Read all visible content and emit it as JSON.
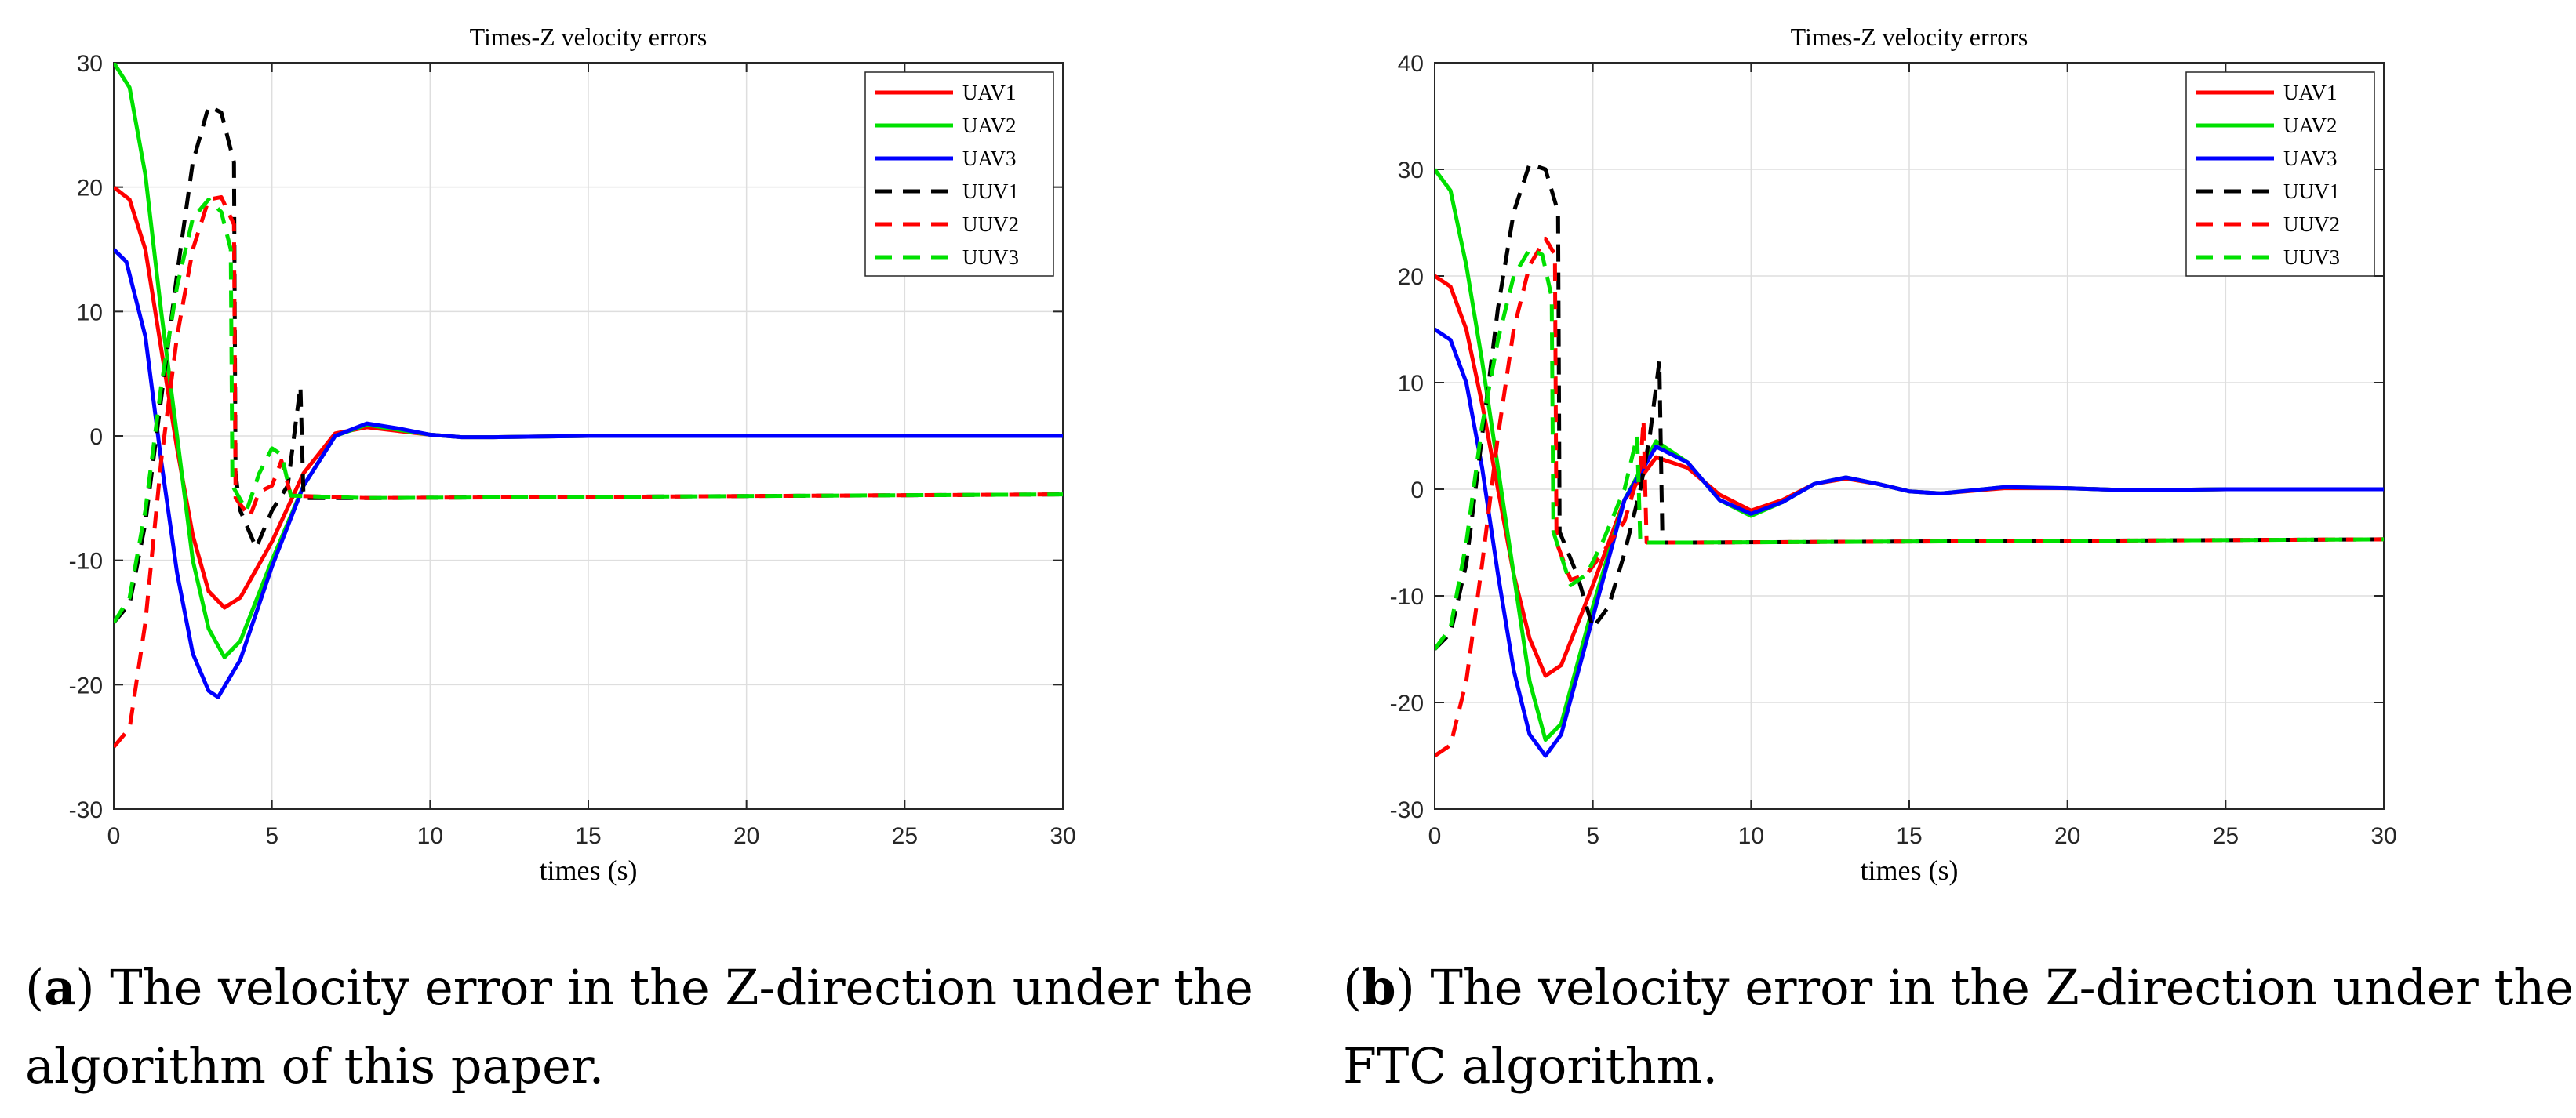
{
  "chart_data": [
    {
      "type": "line",
      "title": "Times-Z velocity errors",
      "xlabel": "times (s)",
      "ylabel": "",
      "xlim": [
        0,
        30
      ],
      "ylim": [
        -30,
        30
      ],
      "xticks": [
        0,
        5,
        10,
        15,
        20,
        25,
        30
      ],
      "yticks": [
        -30,
        -20,
        -10,
        0,
        10,
        20,
        30
      ],
      "legend_position": "top-right",
      "grid": true,
      "series": [
        {
          "name": "UAV1",
          "color": "#ff0000",
          "dash": "solid",
          "points": [
            [
              0,
              20
            ],
            [
              0.5,
              19
            ],
            [
              1,
              15
            ],
            [
              1.5,
              7
            ],
            [
              2,
              -1
            ],
            [
              2.5,
              -8
            ],
            [
              3,
              -12.5
            ],
            [
              3.5,
              -13.8
            ],
            [
              4,
              -13
            ],
            [
              5,
              -8.5
            ],
            [
              6,
              -3
            ],
            [
              7,
              0.2
            ],
            [
              8,
              0.7
            ],
            [
              9,
              0.4
            ],
            [
              10,
              0.1
            ],
            [
              11,
              -0.1
            ],
            [
              12,
              -0.1
            ],
            [
              15,
              0
            ],
            [
              20,
              0
            ],
            [
              30,
              0
            ]
          ]
        },
        {
          "name": "UAV2",
          "color": "#00e000",
          "dash": "solid",
          "points": [
            [
              0,
              30
            ],
            [
              0.5,
              28
            ],
            [
              1,
              21
            ],
            [
              1.5,
              10
            ],
            [
              2,
              0
            ],
            [
              2.5,
              -10
            ],
            [
              3,
              -15.5
            ],
            [
              3.5,
              -17.8
            ],
            [
              4,
              -16.5
            ],
            [
              5,
              -10
            ],
            [
              6,
              -4
            ],
            [
              7,
              0
            ],
            [
              8,
              0.9
            ],
            [
              9,
              0.5
            ],
            [
              10,
              0.1
            ],
            [
              11,
              -0.1
            ],
            [
              12,
              -0.1
            ],
            [
              15,
              0
            ],
            [
              20,
              0
            ],
            [
              30,
              0
            ]
          ]
        },
        {
          "name": "UAV3",
          "color": "#0000ff",
          "dash": "solid",
          "points": [
            [
              0,
              15
            ],
            [
              0.4,
              14
            ],
            [
              1,
              8
            ],
            [
              1.5,
              -2
            ],
            [
              2,
              -11
            ],
            [
              2.5,
              -17.5
            ],
            [
              3,
              -20.5
            ],
            [
              3.3,
              -21
            ],
            [
              4,
              -18
            ],
            [
              5,
              -10.5
            ],
            [
              6,
              -4
            ],
            [
              7,
              0
            ],
            [
              8,
              1
            ],
            [
              9,
              0.6
            ],
            [
              10,
              0.1
            ],
            [
              11,
              -0.1
            ],
            [
              12,
              -0.1
            ],
            [
              15,
              0
            ],
            [
              20,
              0
            ],
            [
              30,
              0
            ]
          ]
        },
        {
          "name": "UUV1",
          "color": "#000000",
          "dash": "dashed",
          "points": [
            [
              0,
              -15
            ],
            [
              0.5,
              -13.5
            ],
            [
              1,
              -7
            ],
            [
              1.5,
              3
            ],
            [
              2,
              13
            ],
            [
              2.5,
              22
            ],
            [
              3,
              26.5
            ],
            [
              3.4,
              26
            ],
            [
              3.8,
              22
            ],
            [
              3.85,
              -3
            ],
            [
              4,
              -6
            ],
            [
              4.5,
              -9
            ],
            [
              5,
              -6
            ],
            [
              5.5,
              -4
            ],
            [
              5.7,
              0
            ],
            [
              5.9,
              4
            ],
            [
              6,
              -5
            ],
            [
              8,
              -5
            ],
            [
              30,
              -4.7
            ]
          ]
        },
        {
          "name": "UUV2",
          "color": "#ff0000",
          "dash": "dashed",
          "points": [
            [
              0,
              -25
            ],
            [
              0.5,
              -23.5
            ],
            [
              1,
              -15
            ],
            [
              1.5,
              -2
            ],
            [
              2,
              8
            ],
            [
              2.5,
              15
            ],
            [
              3,
              19
            ],
            [
              3.4,
              19.2
            ],
            [
              3.8,
              17
            ],
            [
              3.85,
              -5
            ],
            [
              4.3,
              -6.5
            ],
            [
              4.6,
              -4.5
            ],
            [
              5,
              -4
            ],
            [
              5.3,
              -2
            ],
            [
              5.6,
              -4.8
            ],
            [
              8,
              -5
            ],
            [
              30,
              -4.7
            ]
          ]
        },
        {
          "name": "UUV3",
          "color": "#00e000",
          "dash": "dashed",
          "points": [
            [
              0,
              -15
            ],
            [
              0.5,
              -13
            ],
            [
              1,
              -6
            ],
            [
              1.5,
              4
            ],
            [
              2,
              12
            ],
            [
              2.5,
              17.5
            ],
            [
              3,
              19
            ],
            [
              3.4,
              18
            ],
            [
              3.7,
              15
            ],
            [
              3.75,
              -4
            ],
            [
              4.2,
              -6
            ],
            [
              4.6,
              -3
            ],
            [
              5,
              -1
            ],
            [
              5.3,
              -1.5
            ],
            [
              5.6,
              -4.8
            ],
            [
              8,
              -5
            ],
            [
              30,
              -4.7
            ]
          ]
        }
      ]
    },
    {
      "type": "line",
      "title": "Times-Z velocity errors",
      "xlabel": "times (s)",
      "ylabel": "",
      "xlim": [
        0,
        30
      ],
      "ylim": [
        -30,
        40
      ],
      "xticks": [
        0,
        5,
        10,
        15,
        20,
        25,
        30
      ],
      "yticks": [
        -30,
        -20,
        -10,
        0,
        10,
        20,
        30,
        40
      ],
      "legend_position": "top-right",
      "grid": true,
      "series": [
        {
          "name": "UAV1",
          "color": "#ff0000",
          "dash": "solid",
          "points": [
            [
              0,
              20
            ],
            [
              0.5,
              19
            ],
            [
              1,
              15
            ],
            [
              1.5,
              8
            ],
            [
              2,
              0
            ],
            [
              2.5,
              -8
            ],
            [
              3,
              -14
            ],
            [
              3.5,
              -17.5
            ],
            [
              4,
              -16.5
            ],
            [
              5,
              -9
            ],
            [
              6,
              -1
            ],
            [
              7,
              3
            ],
            [
              8,
              2
            ],
            [
              9,
              -0.5
            ],
            [
              10,
              -2
            ],
            [
              11,
              -1
            ],
            [
              12,
              0.5
            ],
            [
              13,
              1
            ],
            [
              14,
              0.5
            ],
            [
              15,
              -0.2
            ],
            [
              16,
              -0.4
            ],
            [
              18,
              0.1
            ],
            [
              20,
              0.1
            ],
            [
              22,
              -0.1
            ],
            [
              25,
              0
            ],
            [
              30,
              0
            ]
          ]
        },
        {
          "name": "UAV2",
          "color": "#00e000",
          "dash": "solid",
          "points": [
            [
              0,
              30
            ],
            [
              0.5,
              28
            ],
            [
              1,
              21
            ],
            [
              1.5,
              12
            ],
            [
              2,
              2
            ],
            [
              2.5,
              -8
            ],
            [
              3,
              -18
            ],
            [
              3.5,
              -23.5
            ],
            [
              4,
              -22
            ],
            [
              5,
              -11
            ],
            [
              6,
              -1
            ],
            [
              7,
              4.5
            ],
            [
              8,
              2.5
            ],
            [
              9,
              -1
            ],
            [
              10,
              -2.5
            ],
            [
              11,
              -1.2
            ],
            [
              12,
              0.5
            ],
            [
              13,
              1.1
            ],
            [
              14,
              0.5
            ],
            [
              15,
              -0.2
            ],
            [
              16,
              -0.4
            ],
            [
              18,
              0.2
            ],
            [
              20,
              0.1
            ],
            [
              22,
              -0.1
            ],
            [
              25,
              0
            ],
            [
              30,
              0
            ]
          ]
        },
        {
          "name": "UAV3",
          "color": "#0000ff",
          "dash": "solid",
          "points": [
            [
              0,
              15
            ],
            [
              0.5,
              14
            ],
            [
              1,
              10
            ],
            [
              1.5,
              2
            ],
            [
              2,
              -8
            ],
            [
              2.5,
              -17
            ],
            [
              3,
              -23
            ],
            [
              3.5,
              -25
            ],
            [
              4,
              -23
            ],
            [
              5,
              -12
            ],
            [
              6,
              -1
            ],
            [
              7,
              4
            ],
            [
              8,
              2.5
            ],
            [
              9,
              -1
            ],
            [
              10,
              -2.3
            ],
            [
              11,
              -1.2
            ],
            [
              12,
              0.5
            ],
            [
              13,
              1.1
            ],
            [
              14,
              0.5
            ],
            [
              15,
              -0.2
            ],
            [
              16,
              -0.4
            ],
            [
              18,
              0.2
            ],
            [
              20,
              0.1
            ],
            [
              22,
              -0.1
            ],
            [
              25,
              0
            ],
            [
              30,
              0
            ]
          ]
        },
        {
          "name": "UUV1",
          "color": "#000000",
          "dash": "dashed",
          "points": [
            [
              0,
              -15
            ],
            [
              0.5,
              -13.5
            ],
            [
              1,
              -7
            ],
            [
              1.5,
              5
            ],
            [
              2,
              17
            ],
            [
              2.5,
              26
            ],
            [
              3,
              30.5
            ],
            [
              3.5,
              30
            ],
            [
              3.9,
              26
            ],
            [
              3.95,
              -4
            ],
            [
              4.5,
              -8
            ],
            [
              5,
              -13
            ],
            [
              5.5,
              -11
            ],
            [
              6,
              -6
            ],
            [
              6.5,
              0
            ],
            [
              6.8,
              5
            ],
            [
              7.1,
              12
            ],
            [
              7.2,
              -5
            ],
            [
              8,
              -5
            ],
            [
              30,
              -4.7
            ]
          ]
        },
        {
          "name": "UUV2",
          "color": "#ff0000",
          "dash": "dashed",
          "points": [
            [
              0,
              -25
            ],
            [
              0.5,
              -24
            ],
            [
              1,
              -18
            ],
            [
              1.5,
              -7
            ],
            [
              2,
              5
            ],
            [
              2.5,
              15
            ],
            [
              3,
              21
            ],
            [
              3.5,
              23.5
            ],
            [
              3.8,
              22
            ],
            [
              3.85,
              -5
            ],
            [
              4.3,
              -8.5
            ],
            [
              4.8,
              -8
            ],
            [
              5.3,
              -6
            ],
            [
              6,
              -3
            ],
            [
              6.5,
              2
            ],
            [
              6.6,
              6.5
            ],
            [
              6.7,
              -5
            ],
            [
              8,
              -5
            ],
            [
              30,
              -4.7
            ]
          ]
        },
        {
          "name": "UUV3",
          "color": "#00e000",
          "dash": "dashed",
          "points": [
            [
              0,
              -15
            ],
            [
              0.5,
              -13
            ],
            [
              1,
              -5
            ],
            [
              1.5,
              6
            ],
            [
              2,
              14
            ],
            [
              2.5,
              20
            ],
            [
              3,
              22.5
            ],
            [
              3.4,
              22
            ],
            [
              3.7,
              18
            ],
            [
              3.75,
              -4
            ],
            [
              4.3,
              -9
            ],
            [
              4.8,
              -8
            ],
            [
              5.3,
              -5
            ],
            [
              6,
              0
            ],
            [
              6.4,
              5
            ],
            [
              6.5,
              -5
            ],
            [
              8,
              -5
            ],
            [
              30,
              -4.7
            ]
          ]
        }
      ]
    }
  ],
  "captions": [
    {
      "label": "a",
      "text": "The velocity error in the Z-direction under the algorithm of this paper."
    },
    {
      "label": "b",
      "text": "The velocity error in the Z-direction under the FTC algorithm."
    }
  ]
}
